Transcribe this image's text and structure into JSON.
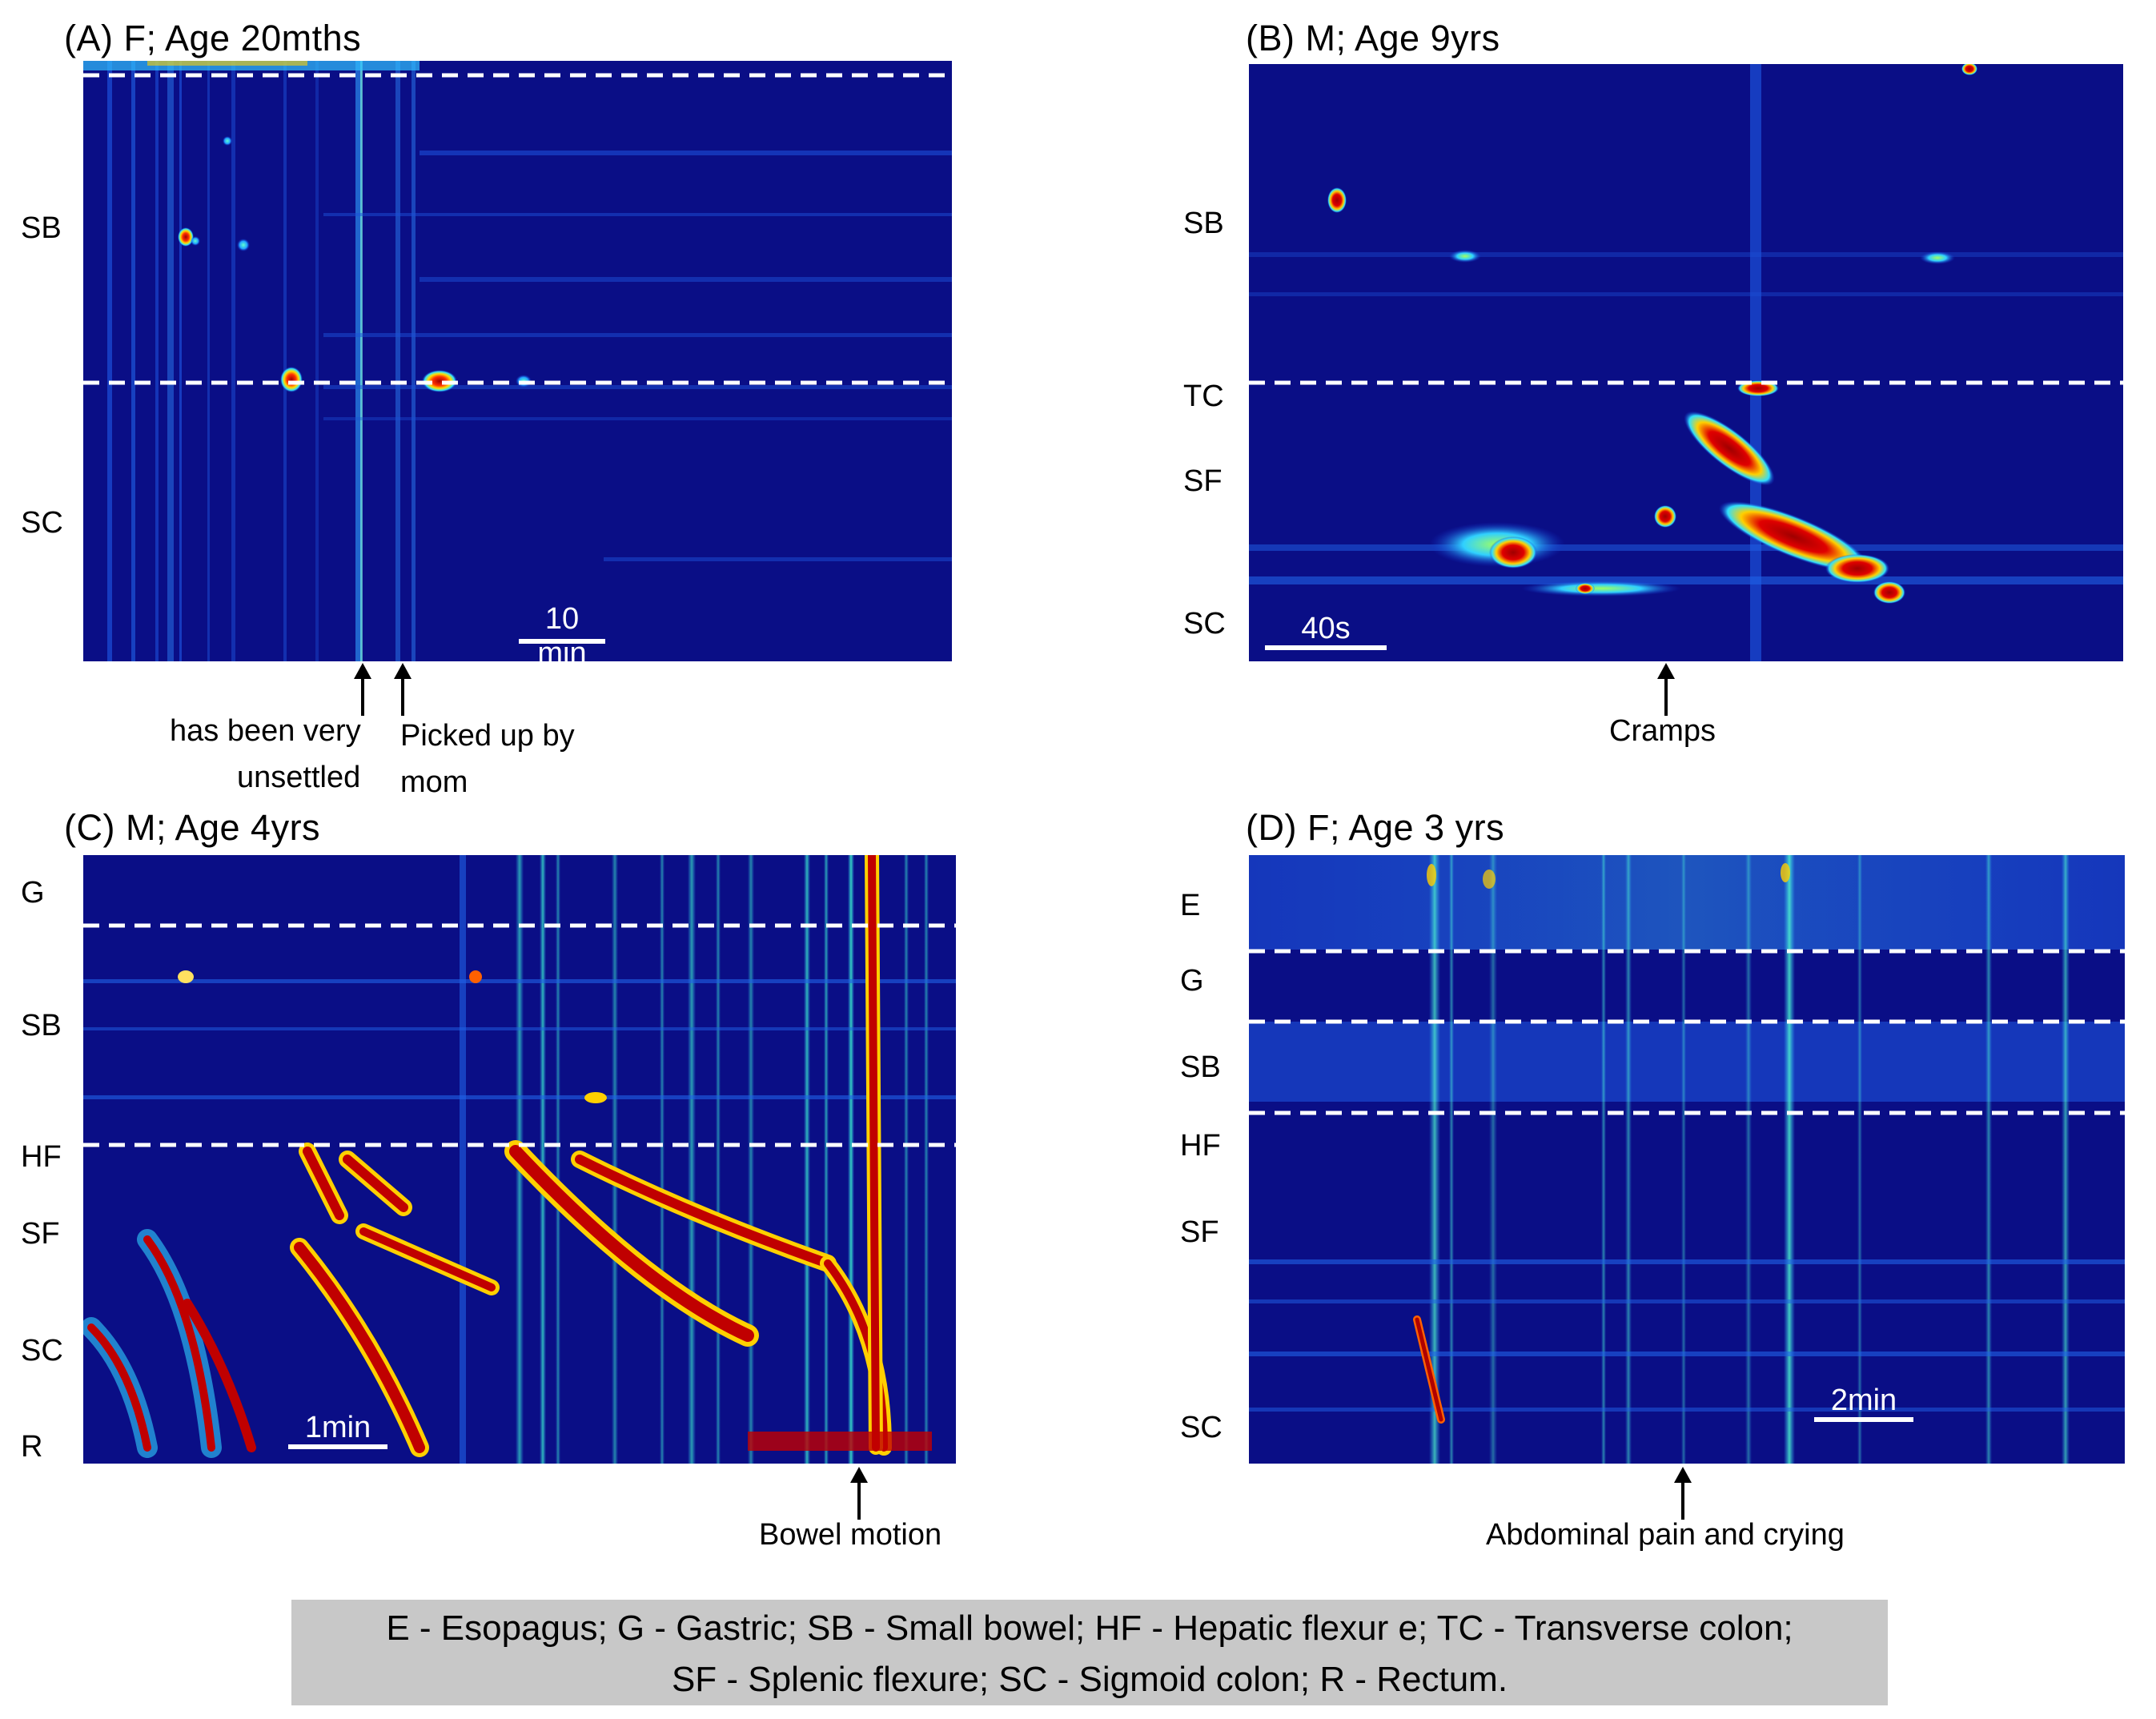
{
  "colors": {
    "background_low": "#0a0e86",
    "mid_cyan": "#20d0ff",
    "high_red": "#b00000",
    "divider": "#ffffff",
    "legend_bg": "#c8c8c8"
  },
  "chart_data": [
    {
      "type": "heatmap",
      "panel": "A",
      "title": "(A) F; Age 20mths",
      "segment_labels": [
        "SB",
        "SC"
      ],
      "scale_bar": "10 min",
      "annotations": [
        "has been very unsettled",
        "Picked up by mom"
      ],
      "colormap": "jet",
      "divider_style": "white dashed"
    },
    {
      "type": "heatmap",
      "panel": "B",
      "title": "(B) M; Age 9yrs",
      "segment_labels": [
        "SB",
        "TC",
        "SF",
        "SC"
      ],
      "scale_bar": "40s",
      "annotations": [
        "Cramps"
      ],
      "colormap": "jet",
      "divider_style": "white dashed"
    },
    {
      "type": "heatmap",
      "panel": "C",
      "title": "(C) M; Age 4yrs",
      "segment_labels": [
        "G",
        "SB",
        "HF",
        "SF",
        "SC",
        "R"
      ],
      "scale_bar": "1min",
      "annotations": [
        "Bowel motion"
      ],
      "colormap": "jet",
      "divider_style": "white dashed"
    },
    {
      "type": "heatmap",
      "panel": "D",
      "title": "(D) F; Age 3 yrs",
      "segment_labels": [
        "E",
        "G",
        "SB",
        "HF",
        "SF",
        "SC"
      ],
      "scale_bar": "2min",
      "annotations": [
        "Abdominal pain and crying"
      ],
      "colormap": "jet",
      "divider_style": "white dashed"
    }
  ],
  "panels": {
    "A": {
      "title": "(A) F; Age 20mths",
      "labels": {
        "sb": "SB",
        "sc": "SC"
      },
      "scale": "10 min",
      "ann1_line1": "has been very",
      "ann1_line2": "unsettled",
      "ann2_line1": "Picked up by",
      "ann2_line2": "mom"
    },
    "B": {
      "title": "(B) M; Age 9yrs",
      "labels": {
        "sb": "SB",
        "tc": "TC",
        "sf": "SF",
        "sc": "SC"
      },
      "scale": "40s",
      "ann": "Cramps"
    },
    "C": {
      "title": "(C) M; Age 4yrs",
      "labels": {
        "g": "G",
        "sb": "SB",
        "hf": "HF",
        "sf": "SF",
        "sc": "SC",
        "r": "R"
      },
      "scale": "1min",
      "ann": "Bowel motion"
    },
    "D": {
      "title": "(D) F; Age 3 yrs",
      "labels": {
        "e": "E",
        "g": "G",
        "sb": "SB",
        "hf": "HF",
        "sf": "SF",
        "sc": "SC"
      },
      "scale": "2min",
      "ann": "Abdominal pain and crying"
    }
  },
  "legend": {
    "line1": "E - Esopagus; G - Gastric; SB - Small bowel; HF - Hepatic flexur e; TC - Transverse colon;",
    "line2": "SF - Splenic flexure; SC - Sigmoid colon; R - Rectum."
  }
}
